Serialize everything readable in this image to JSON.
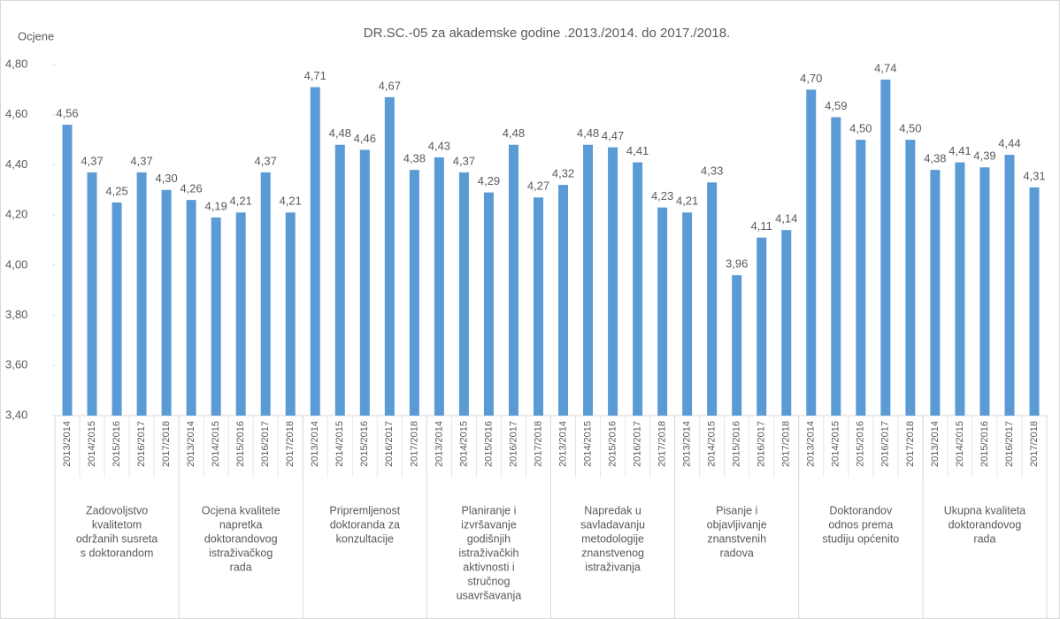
{
  "chart_data": {
    "type": "bar",
    "title": "DR.SC.-05 za akademske godine .2013./2014. do 2017./2018.",
    "ylabel": "Ocjene",
    "color": "#5b9bd5",
    "ylim": [
      3.4,
      4.8
    ],
    "yticks": [
      {
        "value": 3.4,
        "label": "3,40"
      },
      {
        "value": 3.6,
        "label": "3,60"
      },
      {
        "value": 3.8,
        "label": "3,80"
      },
      {
        "value": 4.0,
        "label": "4,00"
      },
      {
        "value": 4.2,
        "label": "4,20"
      },
      {
        "value": 4.4,
        "label": "4,40"
      },
      {
        "value": 4.6,
        "label": "4,60"
      },
      {
        "value": 4.8,
        "label": "4,80"
      }
    ],
    "grid": false,
    "groups": [
      {
        "label_lines": [
          "Zadovoljstvo",
          "kvalitetom",
          "održanih susreta",
          "s doktorandom"
        ],
        "categories": [
          "2013/2014",
          "2014/2015",
          "2015/2016",
          "2016/2017",
          "2017/2018"
        ],
        "values": [
          4.56,
          4.37,
          4.25,
          4.37,
          4.3
        ],
        "value_labels": [
          "4,56",
          "4,37",
          "4,25",
          "4,37",
          "4,30"
        ]
      },
      {
        "label_lines": [
          "Ocjena kvalitete",
          "napretka",
          "doktorandovog",
          "istraživačkog",
          "rada"
        ],
        "categories": [
          "2013/2014",
          "2014/2015",
          "2015/2016",
          "2016/2017",
          "2017/2018"
        ],
        "values": [
          4.26,
          4.19,
          4.21,
          4.37,
          4.21
        ],
        "value_labels": [
          "4,26",
          "4,19",
          "4,21",
          "4,37",
          "4,21"
        ]
      },
      {
        "label_lines": [
          "Pripremljenost",
          "doktoranda za",
          "konzultacije"
        ],
        "categories": [
          "2013/2014",
          "2014/2015",
          "2015/2016",
          "2016/2017",
          "2017/2018"
        ],
        "values": [
          4.71,
          4.48,
          4.46,
          4.67,
          4.38
        ],
        "value_labels": [
          "4,71",
          "4,48",
          "4,46",
          "4,67",
          "4,38"
        ]
      },
      {
        "label_lines": [
          "Planiranje i",
          "izvršavanje",
          "godišnjih",
          "istraživačkih",
          "aktivnosti i",
          "stručnog",
          "usavršavanja"
        ],
        "categories": [
          "2013/2014",
          "2014/2015",
          "2015/2016",
          "2016/2017",
          "2017/2018"
        ],
        "values": [
          4.43,
          4.37,
          4.29,
          4.48,
          4.27
        ],
        "value_labels": [
          "4,43",
          "4,37",
          "4,29",
          "4,48",
          "4,27"
        ]
      },
      {
        "label_lines": [
          "Napredak u",
          "savladavanju",
          "metodologije",
          "znanstvenog",
          "istraživanja"
        ],
        "categories": [
          "2013/2014",
          "2014/2015",
          "2015/2016",
          "2016/2017",
          "2017/2018"
        ],
        "values": [
          4.32,
          4.48,
          4.47,
          4.41,
          4.23
        ],
        "value_labels": [
          "4,32",
          "4,48",
          "4,47",
          "4,41",
          "4,23"
        ]
      },
      {
        "label_lines": [
          "Pisanje i",
          "objavljivanje",
          "znanstvenih",
          "radova"
        ],
        "categories": [
          "2013/2014",
          "2014/2015",
          "2015/2016",
          "2016/2017",
          "2017/2018"
        ],
        "values": [
          4.21,
          4.33,
          3.96,
          4.11,
          4.14
        ],
        "value_labels": [
          "4,21",
          "4,33",
          "3,96",
          "4,11",
          "4,14"
        ]
      },
      {
        "label_lines": [
          "Doktorandov",
          "odnos prema",
          "studiju općenito"
        ],
        "categories": [
          "2013/2014",
          "2014/2015",
          "2015/2016",
          "2016/2017",
          "2017/2018"
        ],
        "values": [
          4.7,
          4.59,
          4.5,
          4.74,
          4.5
        ],
        "value_labels": [
          "4,70",
          "4,59",
          "4,50",
          "4,74",
          "4,50"
        ]
      },
      {
        "label_lines": [
          "Ukupna kvaliteta",
          "doktorandovog",
          "rada"
        ],
        "categories": [
          "2013/2014",
          "2014/2015",
          "2015/2016",
          "2016/2017",
          "2017/2018"
        ],
        "values": [
          4.38,
          4.41,
          4.39,
          4.44,
          4.31
        ],
        "value_labels": [
          "4,38",
          "4,41",
          "4,39",
          "4,44",
          "4,31"
        ]
      }
    ]
  }
}
